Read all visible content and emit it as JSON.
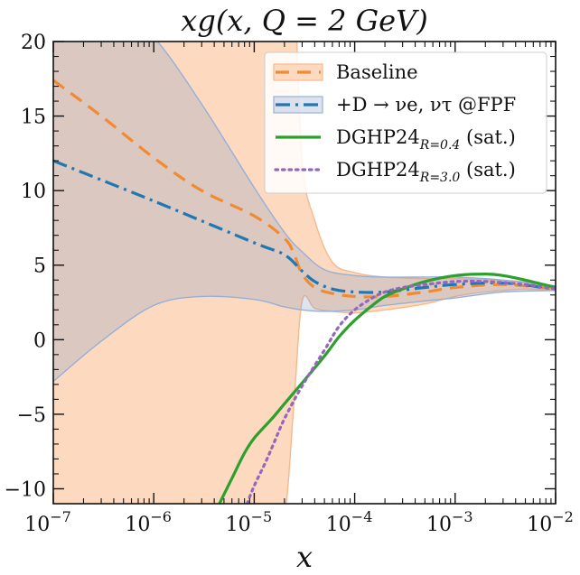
{
  "chart_data": {
    "type": "line",
    "title": "xg(x, Q = 2 GeV)",
    "xlabel": "x",
    "ylabel": "",
    "x_scale": "log",
    "xlim": [
      1e-07,
      0.01
    ],
    "ylim": [
      -11,
      20
    ],
    "grid": false,
    "legend_position": "top-right",
    "x_ticks": [
      {
        "value": 1e-07,
        "base": "10",
        "exp": "−7"
      },
      {
        "value": 1e-06,
        "base": "10",
        "exp": "−6"
      },
      {
        "value": 1e-05,
        "base": "10",
        "exp": "−5"
      },
      {
        "value": 0.0001,
        "base": "10",
        "exp": "−4"
      },
      {
        "value": 0.001,
        "base": "10",
        "exp": "−3"
      },
      {
        "value": 0.01,
        "base": "10",
        "exp": "−2"
      }
    ],
    "y_ticks": [
      {
        "value": 20,
        "label": "20"
      },
      {
        "value": 15,
        "label": "15"
      },
      {
        "value": 10,
        "label": "10"
      },
      {
        "value": 5,
        "label": "5"
      },
      {
        "value": 0,
        "label": "0"
      },
      {
        "value": -5,
        "label": "−5"
      },
      {
        "value": -10,
        "label": "−10"
      }
    ],
    "bands": [
      {
        "name": "Baseline",
        "fill": "#fdd9bf",
        "stroke": "#f7b98a",
        "x": [
          1e-07,
          1e-06,
          3e-06,
          1e-05,
          1.5e-05,
          2e-05,
          2.5e-05,
          3e-05,
          4e-05,
          6e-05,
          0.0001,
          0.0002,
          0.0005,
          0.001,
          0.002,
          0.005,
          0.01
        ],
        "upper": [
          30,
          30,
          30,
          30,
          30,
          30,
          24,
          12,
          8,
          5.2,
          4.5,
          4.2,
          4.1,
          4.1,
          4.0,
          3.9,
          3.6
        ],
        "lower": [
          -12,
          -12,
          -12,
          -12,
          -12,
          -12,
          -4,
          2.6,
          2.1,
          1.9,
          1.8,
          2.0,
          2.4,
          2.9,
          3.2,
          3.4,
          3.3
        ]
      },
      {
        "name": "+D → νe, ντ @FPF",
        "fill": "rgba(120,150,200,0.26)",
        "stroke": "#95b0d8",
        "x": [
          1e-07,
          3e-07,
          1e-06,
          3e-06,
          1e-05,
          2e-05,
          3e-05,
          5e-05,
          0.0001,
          0.0002,
          0.0005,
          0.001,
          0.003,
          0.01
        ],
        "upper": [
          26.5,
          23.5,
          20.3,
          15.8,
          10.2,
          7.2,
          5.9,
          4.7,
          4.3,
          4.2,
          4.2,
          4.2,
          4.0,
          3.6
        ],
        "lower": [
          -2.8,
          -0.1,
          2.3,
          2.9,
          2.7,
          2.2,
          2.0,
          1.9,
          2.0,
          2.3,
          2.6,
          2.8,
          3.2,
          3.3
        ]
      }
    ],
    "series": [
      {
        "name": "Baseline",
        "color": "#f28a30",
        "dash": "15,9",
        "x": [
          1e-07,
          3e-07,
          1e-06,
          3e-06,
          1e-05,
          2e-05,
          2.5e-05,
          3e-05,
          4e-05,
          6e-05,
          0.0001,
          0.0002,
          0.0005,
          0.001,
          0.003,
          0.01
        ],
        "y": [
          17.4,
          15.0,
          12.2,
          10.0,
          8.3,
          6.8,
          5.7,
          4.4,
          3.5,
          3.1,
          2.9,
          2.9,
          3.2,
          3.5,
          3.7,
          3.4
        ]
      },
      {
        "name": "+D → νe, ντ @FPF",
        "color": "#1f77b4",
        "dash": "16,6,3,6",
        "x": [
          1e-07,
          1e-06,
          1e-05,
          2e-05,
          3e-05,
          4e-05,
          6e-05,
          0.0001,
          0.0002,
          0.0005,
          0.001,
          0.003,
          0.01
        ],
        "y": [
          12.0,
          9.3,
          6.5,
          5.7,
          4.6,
          3.9,
          3.4,
          3.2,
          3.2,
          3.5,
          3.7,
          3.8,
          3.4
        ]
      },
      {
        "name": "DGHP24 R=0.4 (sat.)",
        "color": "#2ca02c",
        "dash": "",
        "x": [
          4.5e-06,
          6e-06,
          8e-06,
          1e-05,
          1.5e-05,
          2e-05,
          3e-05,
          5e-05,
          7e-05,
          0.0001,
          0.00015,
          0.0002,
          0.0003,
          0.0005,
          0.001,
          0.002,
          0.003,
          0.005,
          0.01
        ],
        "y": [
          -11,
          -9.3,
          -7.6,
          -6.6,
          -5.3,
          -4.3,
          -2.9,
          -1.1,
          0.2,
          1.3,
          2.3,
          2.9,
          3.4,
          3.9,
          4.3,
          4.4,
          4.3,
          4.0,
          3.5
        ]
      },
      {
        "name": "DGHP24 R=3.0 (sat.)",
        "color": "#9467bd",
        "dash": "2.5,5",
        "x": [
          8.5e-06,
          1e-05,
          1.3e-05,
          1.6e-05,
          2e-05,
          3e-05,
          5e-05,
          7e-05,
          0.0001,
          0.00015,
          0.0002,
          0.0003,
          0.0005,
          0.001,
          0.002,
          0.005,
          0.01
        ],
        "y": [
          -11,
          -9.8,
          -8.2,
          -6.8,
          -5.3,
          -3.1,
          -0.7,
          0.9,
          2.0,
          2.8,
          3.2,
          3.5,
          3.7,
          3.9,
          3.9,
          3.7,
          3.4
        ]
      }
    ],
    "legend": [
      {
        "label": "Baseline",
        "sub": "",
        "suffix": ""
      },
      {
        "label": "+D → νe, ντ @FPF",
        "sub": "",
        "suffix": ""
      },
      {
        "label": "DGHP24",
        "sub": "R=0.4",
        "suffix": " (sat.)"
      },
      {
        "label": "DGHP24",
        "sub": "R=3.0",
        "suffix": " (sat.)"
      }
    ]
  }
}
